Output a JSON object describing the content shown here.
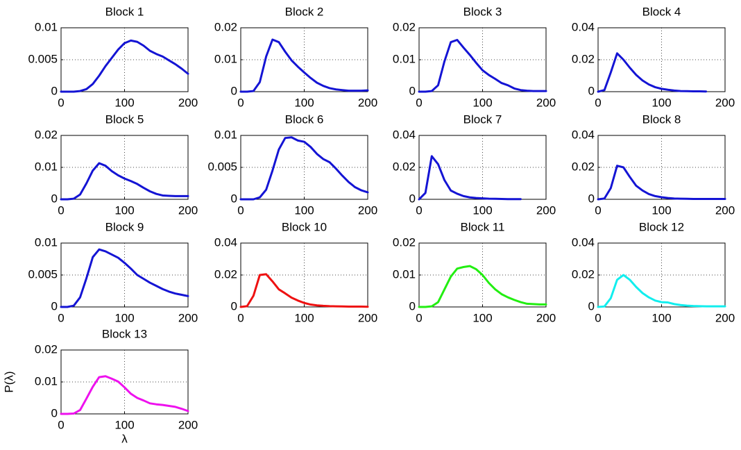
{
  "chart_data": [
    {
      "type": "line",
      "title": "Block 1",
      "x": [
        0,
        10,
        20,
        30,
        40,
        50,
        60,
        70,
        80,
        90,
        100,
        110,
        120,
        130,
        140,
        150,
        160,
        170,
        180,
        190,
        200
      ],
      "series": [
        {
          "color": "#1414d4",
          "values": [
            0,
            0,
            0,
            0.0001,
            0.0004,
            0.0012,
            0.0025,
            0.004,
            0.0053,
            0.0066,
            0.0076,
            0.008,
            0.0078,
            0.0072,
            0.0064,
            0.0059,
            0.0055,
            0.0049,
            0.0043,
            0.0036,
            0.0028
          ]
        }
      ],
      "xlim": [
        0,
        200
      ],
      "xticks": [
        0,
        100,
        200
      ],
      "ylim": [
        0,
        0.01
      ],
      "yticks": [
        0,
        0.005,
        0.01
      ],
      "grid": true
    },
    {
      "type": "line",
      "title": "Block 2",
      "x": [
        0,
        10,
        20,
        30,
        40,
        50,
        60,
        70,
        80,
        90,
        100,
        110,
        120,
        130,
        140,
        150,
        160,
        170,
        180,
        190,
        200
      ],
      "series": [
        {
          "color": "#1414d4",
          "values": [
            0,
            0,
            0.0002,
            0.003,
            0.011,
            0.0163,
            0.0155,
            0.0125,
            0.0098,
            0.0078,
            0.006,
            0.0043,
            0.0028,
            0.0018,
            0.0011,
            0.0007,
            0.0005,
            0.0003,
            0.0003,
            0.0003,
            0.0004
          ]
        }
      ],
      "xlim": [
        0,
        200
      ],
      "xticks": [
        0,
        100,
        200
      ],
      "ylim": [
        0,
        0.02
      ],
      "yticks": [
        0,
        0.01,
        0.02
      ],
      "grid": true
    },
    {
      "type": "line",
      "title": "Block 3",
      "x": [
        0,
        10,
        20,
        30,
        40,
        50,
        60,
        70,
        80,
        90,
        100,
        110,
        120,
        130,
        140,
        150,
        160,
        170,
        180,
        190,
        200
      ],
      "series": [
        {
          "color": "#1414d4",
          "values": [
            0,
            0,
            0.0002,
            0.002,
            0.0095,
            0.0155,
            0.0162,
            0.0138,
            0.0115,
            0.009,
            0.0067,
            0.0052,
            0.004,
            0.0027,
            0.002,
            0.001,
            0.0005,
            0.0003,
            0.0002,
            0.0002,
            0.0002
          ]
        }
      ],
      "xlim": [
        0,
        200
      ],
      "xticks": [
        0,
        100,
        200
      ],
      "ylim": [
        0,
        0.02
      ],
      "yticks": [
        0,
        0.01,
        0.02
      ],
      "grid": true
    },
    {
      "type": "line",
      "title": "Block 4",
      "x": [
        0,
        10,
        20,
        30,
        40,
        50,
        60,
        70,
        80,
        90,
        100,
        110,
        120,
        130,
        140,
        150,
        160,
        170,
        180,
        190,
        200
      ],
      "series": [
        {
          "color": "#1414d4",
          "values": [
            0,
            0.001,
            0.012,
            0.024,
            0.02,
            0.015,
            0.0105,
            0.007,
            0.0045,
            0.0028,
            0.0018,
            0.0012,
            0.0007,
            0.0004,
            0.0003,
            0.0002,
            0.0002,
            0.0001,
            null,
            null,
            null
          ]
        }
      ],
      "xlim": [
        0,
        200
      ],
      "xticks": [
        0,
        100,
        200
      ],
      "ylim": [
        0,
        0.04
      ],
      "yticks": [
        0,
        0.02,
        0.04
      ],
      "grid": true
    },
    {
      "type": "line",
      "title": "Block 5",
      "x": [
        0,
        10,
        20,
        30,
        40,
        50,
        60,
        70,
        80,
        90,
        100,
        110,
        120,
        130,
        140,
        150,
        160,
        170,
        180,
        190,
        200
      ],
      "series": [
        {
          "color": "#1414d4",
          "values": [
            0,
            0,
            0.0002,
            0.0015,
            0.005,
            0.009,
            0.0113,
            0.0105,
            0.0088,
            0.0075,
            0.0065,
            0.0057,
            0.0048,
            0.0036,
            0.0025,
            0.0017,
            0.0012,
            0.0011,
            0.001,
            0.001,
            0.001
          ]
        }
      ],
      "xlim": [
        0,
        200
      ],
      "xticks": [
        0,
        100,
        200
      ],
      "ylim": [
        0,
        0.02
      ],
      "yticks": [
        0,
        0.01,
        0.02
      ],
      "grid": true
    },
    {
      "type": "line",
      "title": "Block 6",
      "x": [
        0,
        10,
        20,
        30,
        40,
        50,
        60,
        70,
        80,
        90,
        100,
        110,
        120,
        130,
        140,
        150,
        160,
        170,
        180,
        190,
        200
      ],
      "series": [
        {
          "color": "#1414d4",
          "values": [
            0,
            0,
            0,
            0.0003,
            0.0015,
            0.0045,
            0.0078,
            0.0096,
            0.0097,
            0.0092,
            0.009,
            0.0082,
            0.0071,
            0.0063,
            0.0058,
            0.0048,
            0.0037,
            0.0027,
            0.0019,
            0.0014,
            0.0011
          ]
        }
      ],
      "xlim": [
        0,
        200
      ],
      "xticks": [
        0,
        100,
        200
      ],
      "ylim": [
        0,
        0.01
      ],
      "yticks": [
        0,
        0.005,
        0.01
      ],
      "grid": true
    },
    {
      "type": "line",
      "title": "Block 7",
      "x": [
        0,
        10,
        20,
        30,
        40,
        50,
        60,
        70,
        80,
        90,
        100,
        110,
        120,
        130,
        140,
        150,
        160,
        170,
        180,
        190,
        200
      ],
      "series": [
        {
          "color": "#1414d4",
          "values": [
            0,
            0.004,
            0.027,
            0.022,
            0.012,
            0.0055,
            0.0035,
            0.002,
            0.0012,
            0.0008,
            0.0006,
            0.0004,
            0.0003,
            0.0002,
            0.0001,
            0.0001,
            0.0001,
            null,
            null,
            null,
            null
          ]
        }
      ],
      "xlim": [
        0,
        200
      ],
      "xticks": [
        0,
        100,
        200
      ],
      "ylim": [
        0,
        0.04
      ],
      "yticks": [
        0,
        0.02,
        0.04
      ],
      "grid": true
    },
    {
      "type": "line",
      "title": "Block 8",
      "x": [
        0,
        10,
        20,
        30,
        40,
        50,
        60,
        70,
        80,
        90,
        100,
        110,
        120,
        130,
        140,
        150,
        160,
        170,
        180,
        190,
        200
      ],
      "series": [
        {
          "color": "#1414d4",
          "values": [
            0,
            0.0005,
            0.007,
            0.021,
            0.02,
            0.014,
            0.0085,
            0.0055,
            0.0033,
            0.002,
            0.0013,
            0.0008,
            0.0005,
            0.0004,
            0.0003,
            0.0002,
            0.0002,
            0.0002,
            0.0002,
            0.0002,
            0.0002
          ]
        }
      ],
      "xlim": [
        0,
        200
      ],
      "xticks": [
        0,
        100,
        200
      ],
      "ylim": [
        0,
        0.04
      ],
      "yticks": [
        0,
        0.02,
        0.04
      ],
      "grid": true
    },
    {
      "type": "line",
      "title": "Block 9",
      "x": [
        0,
        10,
        20,
        30,
        40,
        50,
        60,
        70,
        80,
        90,
        100,
        110,
        120,
        130,
        140,
        150,
        160,
        170,
        180,
        190,
        200
      ],
      "series": [
        {
          "color": "#1414d4",
          "values": [
            0,
            0,
            0.0002,
            0.0015,
            0.0045,
            0.0078,
            0.009,
            0.0087,
            0.0082,
            0.0077,
            0.0069,
            0.006,
            0.005,
            0.0044,
            0.0038,
            0.0033,
            0.0028,
            0.0024,
            0.0021,
            0.0019,
            0.0017
          ]
        }
      ],
      "xlim": [
        0,
        200
      ],
      "xticks": [
        0,
        100,
        200
      ],
      "ylim": [
        0,
        0.01
      ],
      "yticks": [
        0,
        0.005,
        0.01
      ],
      "grid": true
    },
    {
      "type": "line",
      "title": "Block 10",
      "x": [
        0,
        10,
        20,
        30,
        40,
        50,
        60,
        70,
        80,
        90,
        100,
        110,
        120,
        130,
        140,
        150,
        160,
        170,
        180,
        190,
        200
      ],
      "series": [
        {
          "color": "#ee1111",
          "values": [
            0,
            0.0005,
            0.007,
            0.02,
            0.0205,
            0.016,
            0.011,
            0.0085,
            0.0058,
            0.004,
            0.0025,
            0.0015,
            0.001,
            0.0007,
            0.0005,
            0.0004,
            0.0003,
            0.0002,
            0.0002,
            0.0002,
            0.0001
          ]
        }
      ],
      "xlim": [
        0,
        200
      ],
      "xticks": [
        0,
        100,
        200
      ],
      "ylim": [
        0,
        0.04
      ],
      "yticks": [
        0,
        0.02,
        0.04
      ],
      "grid": true
    },
    {
      "type": "line",
      "title": "Block 11",
      "x": [
        0,
        10,
        20,
        30,
        40,
        50,
        60,
        70,
        80,
        90,
        100,
        110,
        120,
        130,
        140,
        150,
        160,
        170,
        180,
        190,
        200
      ],
      "series": [
        {
          "color": "#22ee11",
          "values": [
            0,
            0,
            0.0002,
            0.0015,
            0.0055,
            0.0095,
            0.012,
            0.0125,
            0.0128,
            0.0118,
            0.01,
            0.0075,
            0.0055,
            0.004,
            0.003,
            0.0022,
            0.0015,
            0.001,
            0.0009,
            0.0008,
            0.0008
          ]
        }
      ],
      "xlim": [
        0,
        200
      ],
      "xticks": [
        0,
        100,
        200
      ],
      "ylim": [
        0,
        0.02
      ],
      "yticks": [
        0,
        0.01,
        0.02
      ],
      "grid": true
    },
    {
      "type": "line",
      "title": "Block 12",
      "x": [
        0,
        10,
        20,
        30,
        40,
        50,
        60,
        70,
        80,
        90,
        100,
        110,
        120,
        130,
        140,
        150,
        160,
        170,
        180,
        190,
        200
      ],
      "series": [
        {
          "color": "#11eeee",
          "values": [
            0,
            0.0003,
            0.0055,
            0.017,
            0.02,
            0.017,
            0.0125,
            0.0087,
            0.006,
            0.004,
            0.003,
            0.0028,
            0.0018,
            0.0012,
            0.0008,
            0.0006,
            0.0005,
            0.0004,
            0.0004,
            0.0004,
            0.0004
          ]
        }
      ],
      "xlim": [
        0,
        200
      ],
      "xticks": [
        0,
        100,
        200
      ],
      "ylim": [
        0,
        0.04
      ],
      "yticks": [
        0,
        0.02,
        0.04
      ],
      "grid": true
    },
    {
      "type": "line",
      "title": "Block 13",
      "x_label": "λ",
      "y_label": "P(λ)",
      "x": [
        0,
        10,
        20,
        30,
        40,
        50,
        60,
        70,
        80,
        90,
        100,
        110,
        120,
        130,
        140,
        150,
        160,
        170,
        180,
        190,
        200
      ],
      "series": [
        {
          "color": "#ee11ee",
          "values": [
            0,
            0,
            0.0001,
            0.0012,
            0.0048,
            0.0085,
            0.0115,
            0.0118,
            0.011,
            0.0101,
            0.0083,
            0.0063,
            0.005,
            0.0042,
            0.0033,
            0.003,
            0.0028,
            0.0025,
            0.0022,
            0.0016,
            0.0009
          ]
        }
      ],
      "xlim": [
        0,
        200
      ],
      "xticks": [
        0,
        100,
        200
      ],
      "ylim": [
        0,
        0.02
      ],
      "yticks": [
        0,
        0.01,
        0.02
      ],
      "grid": true
    }
  ]
}
